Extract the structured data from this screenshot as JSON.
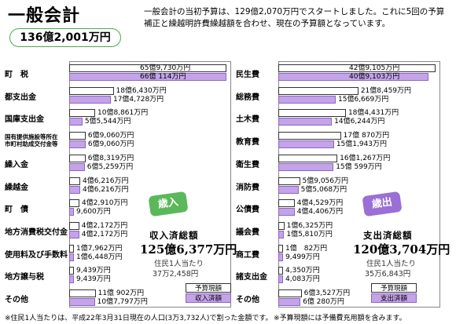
{
  "title": "一般会計",
  "total": "136億2,001万円",
  "intro": "一般会計の当初予算は、129億2,070万円でスタートしました。これに5回の予算補正と繰越明許費繰越額を合わせ、現在の予算額となっています。",
  "revenue": {
    "badge": "歳入",
    "sum_label": "収入済総額",
    "sum_value": "125億6,377万円",
    "per_capita_label": "住民1人当たり",
    "per_capita_value": "37万2,458円",
    "items": [
      {
        "label": "町　税",
        "budget": "65億9,730万円",
        "actual": "66億 114万円",
        "budget_v": 659730,
        "actual_v": 660114
      },
      {
        "label": "都支出金",
        "budget": "18億6,430万円",
        "actual": "17億4,728万円",
        "budget_v": 186430,
        "actual_v": 174728
      },
      {
        "label": "国庫支出金",
        "budget": "10億8,861万円",
        "actual": "5億5,544万円",
        "budget_v": 108861,
        "actual_v": 55544
      },
      {
        "label": "国有提供施設等所在市町村助成交付金等",
        "budget": "6億9,060万円",
        "actual": "6億9,060万円",
        "budget_v": 69060,
        "actual_v": 69060
      },
      {
        "label": "繰入金",
        "budget": "6億8,319万円",
        "actual": "6億5,259万円",
        "budget_v": 68319,
        "actual_v": 65259
      },
      {
        "label": "繰越金",
        "budget": "4億6,216万円",
        "actual": "4億6,216万円",
        "budget_v": 46216,
        "actual_v": 46216
      },
      {
        "label": "町　債",
        "budget": "4億2,910万円",
        "actual": "9,600万円",
        "budget_v": 42910,
        "actual_v": 9600
      },
      {
        "label": "地方消費税交付金",
        "budget": "4億2,172万円",
        "actual": "4億2,172万円",
        "budget_v": 42172,
        "actual_v": 42172
      },
      {
        "label": "使用料及び手数料",
        "budget": "1億7,962万円",
        "actual": "1億6,448万円",
        "budget_v": 17962,
        "actual_v": 16448
      },
      {
        "label": "地方譲与税",
        "budget": "9,439万円",
        "actual": "9,439万円",
        "budget_v": 9439,
        "actual_v": 9439
      },
      {
        "label": "その他",
        "budget": "11億 902万円",
        "actual": "10億7,797万円",
        "budget_v": 110902,
        "actual_v": 107797
      }
    ]
  },
  "expenditure": {
    "badge": "歳出",
    "sum_label": "支出済総額",
    "sum_value": "120億3,704万円",
    "per_capita_label": "住民1人当たり",
    "per_capita_value": "35万6,843円",
    "items": [
      {
        "label": "民生費",
        "budget": "42億9,105万円",
        "actual": "40億9,103万円",
        "budget_v": 429105,
        "actual_v": 409103
      },
      {
        "label": "総務費",
        "budget": "21億8,459万円",
        "actual": "15億6,669万円",
        "budget_v": 218459,
        "actual_v": 156669
      },
      {
        "label": "土木費",
        "budget": "18億4,431万円",
        "actual": "14億6,244万円",
        "budget_v": 184431,
        "actual_v": 146244
      },
      {
        "label": "教育費",
        "budget": "17億 870万円",
        "actual": "15億1,943万円",
        "budget_v": 170870,
        "actual_v": 151943
      },
      {
        "label": "衛生費",
        "budget": "16億1,267万円",
        "actual": "15億 599万円",
        "budget_v": 161267,
        "actual_v": 150599
      },
      {
        "label": "消防費",
        "budget": "5億9,056万円",
        "actual": "5億5,068万円",
        "budget_v": 59056,
        "actual_v": 55068
      },
      {
        "label": "公債費",
        "budget": "4億4,529万円",
        "actual": "4億4,406万円",
        "budget_v": 44529,
        "actual_v": 44406
      },
      {
        "label": "議会費",
        "budget": "1億6,325万円",
        "actual": "1億5,810万円",
        "budget_v": 16325,
        "actual_v": 15810
      },
      {
        "label": "商工費",
        "budget": "1億　82万円",
        "actual": "9,499万円",
        "budget_v": 10082,
        "actual_v": 9499
      },
      {
        "label": "諸支出金",
        "budget": "4,350万円",
        "actual": "4,083万円",
        "budget_v": 4350,
        "actual_v": 4083
      },
      {
        "label": "その他",
        "budget": "6億3,527万円",
        "actual": "6億 280万円",
        "budget_v": 63527,
        "actual_v": 60280
      }
    ]
  },
  "legend": {
    "budget_label": "予算現額",
    "revenue_actual_label": "収入済額",
    "expenditure_actual_label": "支出済額"
  },
  "footer_left": "※住民1人当たりは、平成22年3月31日現在の人口(3万3,732人)で割った金額です。",
  "footer_right": "※予算現額には予備費充用額を含みます。",
  "colors": {
    "actual_bar": "#c5a3e8",
    "badge_green": "#5ab85a",
    "badge_purple": "#9a6fd6"
  }
}
